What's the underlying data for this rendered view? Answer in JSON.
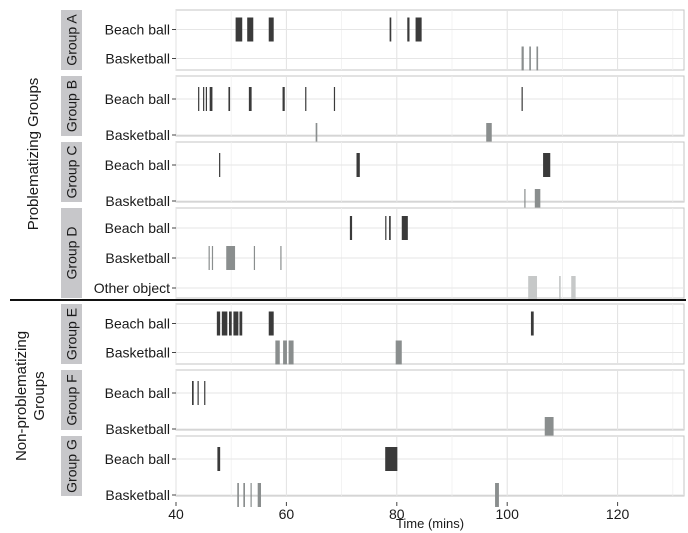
{
  "chart_data": {
    "type": "timeline",
    "xlabel": "Time (mins)",
    "xlim": [
      40,
      132
    ],
    "xticks": [
      40,
      60,
      80,
      100,
      120
    ],
    "colors": {
      "Beach ball": "#3a3a3a",
      "Basketball": "#8a8e8e",
      "Other object": "#c6c8c8"
    },
    "sections": [
      {
        "label": "Problematizing Groups",
        "groups": [
          {
            "name": "Group A",
            "rows": [
              {
                "label": "Beach ball",
                "intervals": [
                  [
                    50.8,
                    52.0
                  ],
                  [
                    52.9,
                    54.0
                  ],
                  [
                    56.8,
                    57.7
                  ],
                  [
                    78.7,
                    79.0
                  ],
                  [
                    81.9,
                    82.3
                  ],
                  [
                    83.4,
                    84.5
                  ]
                ]
              },
              {
                "label": "Basketball",
                "intervals": [
                  [
                    102.6,
                    103.0
                  ],
                  [
                    104.0,
                    104.3
                  ],
                  [
                    105.3,
                    105.6
                  ]
                ]
              }
            ]
          },
          {
            "name": "Group B",
            "rows": [
              {
                "label": "Beach ball",
                "intervals": [
                  [
                    44.0,
                    44.2
                  ],
                  [
                    44.9,
                    45.1
                  ],
                  [
                    45.4,
                    45.6
                  ],
                  [
                    46.1,
                    46.6
                  ],
                  [
                    49.5,
                    49.8
                  ],
                  [
                    53.2,
                    53.7
                  ],
                  [
                    59.3,
                    59.7
                  ],
                  [
                    63.4,
                    63.6
                  ],
                  [
                    68.6,
                    68.8
                  ],
                  [
                    102.6,
                    102.8
                  ]
                ]
              },
              {
                "label": "Basketball",
                "intervals": [
                  [
                    65.3,
                    65.6
                  ],
                  [
                    96.2,
                    97.2
                  ]
                ]
              }
            ]
          },
          {
            "name": "Group C",
            "rows": [
              {
                "label": "Beach ball",
                "intervals": [
                  [
                    47.8,
                    48.0
                  ],
                  [
                    72.7,
                    73.3
                  ],
                  [
                    106.5,
                    107.8
                  ]
                ]
              },
              {
                "label": "Basketball",
                "intervals": [
                  [
                    103.1,
                    103.3
                  ],
                  [
                    105.0,
                    106.0
                  ]
                ]
              }
            ]
          },
          {
            "name": "Group D",
            "rows": [
              {
                "label": "Beach ball",
                "intervals": [
                  [
                    71.5,
                    71.9
                  ],
                  [
                    77.9,
                    78.1
                  ],
                  [
                    78.6,
                    78.9
                  ],
                  [
                    80.9,
                    82.0
                  ]
                ]
              },
              {
                "label": "Basketball",
                "intervals": [
                  [
                    45.9,
                    46.1
                  ],
                  [
                    46.5,
                    46.7
                  ],
                  [
                    49.1,
                    50.7
                  ],
                  [
                    54.1,
                    54.3
                  ],
                  [
                    58.9,
                    59.1
                  ]
                ]
              },
              {
                "label": "Other object",
                "intervals": [
                  [
                    103.8,
                    105.4
                  ],
                  [
                    109.4,
                    109.7
                  ],
                  [
                    111.6,
                    112.4
                  ]
                ]
              }
            ]
          }
        ]
      },
      {
        "label": "Non-problematizing Groups",
        "groups": [
          {
            "name": "Group E",
            "rows": [
              {
                "label": "Beach ball",
                "intervals": [
                  [
                    47.4,
                    48.0
                  ],
                  [
                    48.3,
                    49.3
                  ],
                  [
                    49.6,
                    50.1
                  ],
                  [
                    50.4,
                    51.3
                  ],
                  [
                    51.5,
                    52.0
                  ],
                  [
                    56.8,
                    57.7
                  ],
                  [
                    104.3,
                    104.8
                  ]
                ]
              },
              {
                "label": "Basketball",
                "intervals": [
                  [
                    58.0,
                    58.8
                  ],
                  [
                    59.4,
                    60.1
                  ],
                  [
                    60.4,
                    61.3
                  ],
                  [
                    79.8,
                    80.9
                  ]
                ]
              }
            ]
          },
          {
            "name": "Group F",
            "rows": [
              {
                "label": "Beach ball",
                "intervals": [
                  [
                    42.9,
                    43.2
                  ],
                  [
                    43.9,
                    44.1
                  ],
                  [
                    45.1,
                    45.3
                  ]
                ]
              },
              {
                "label": "Basketball",
                "intervals": [
                  [
                    106.8,
                    108.4
                  ]
                ]
              }
            ]
          },
          {
            "name": "Group G",
            "rows": [
              {
                "label": "Beach ball",
                "intervals": [
                  [
                    47.5,
                    48.0
                  ],
                  [
                    77.9,
                    80.1
                  ]
                ]
              },
              {
                "label": "Basketball",
                "intervals": [
                  [
                    51.1,
                    51.4
                  ],
                  [
                    52.2,
                    52.5
                  ],
                  [
                    53.5,
                    53.7
                  ],
                  [
                    54.8,
                    55.4
                  ],
                  [
                    97.8,
                    98.5
                  ]
                ]
              }
            ]
          }
        ]
      }
    ]
  }
}
